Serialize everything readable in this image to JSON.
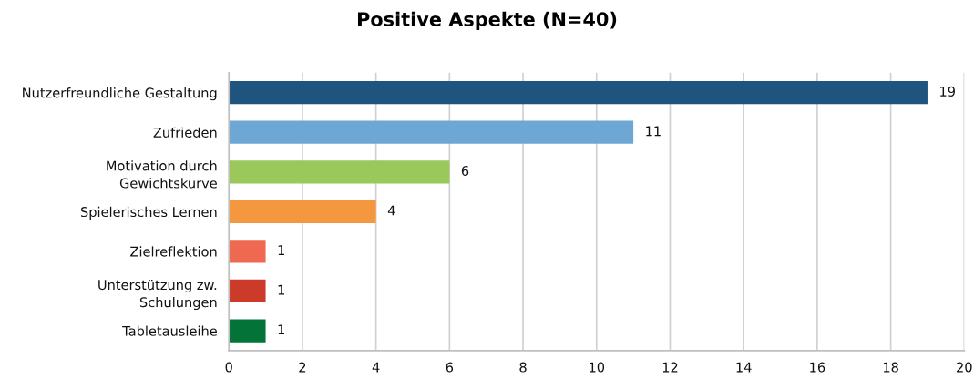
{
  "chart_data": {
    "type": "bar",
    "orientation": "horizontal",
    "title": "Positive Aspekte (N=40)",
    "categories": [
      "Nutzerfreundliche Gestaltung",
      "Zufrieden",
      "Motivation durch\nGewichtskurve",
      "Spielerisches Lernen",
      "Zielreflektion",
      "Unterstützung zw.\nSchulungen",
      "Tabletausleihe"
    ],
    "values": [
      19,
      11,
      6,
      4,
      1,
      1,
      1
    ],
    "colors": [
      "#1f547f",
      "#6fa7d4",
      "#9bc85a",
      "#f4983f",
      "#ef6852",
      "#cc3a2a",
      "#037338"
    ],
    "xlim": [
      0,
      20
    ],
    "xticks": [
      0,
      2,
      4,
      6,
      8,
      10,
      12,
      14,
      16,
      18,
      20
    ],
    "grid": "x",
    "data_labels": true
  }
}
